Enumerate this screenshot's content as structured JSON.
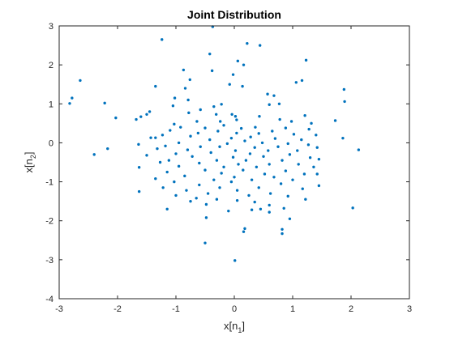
{
  "chart_data": {
    "type": "scatter",
    "title": "Joint Distribution",
    "xlabel": {
      "base": "x[n",
      "sub": "1",
      "close": "]"
    },
    "ylabel": {
      "base": "x[n",
      "sub": "2",
      "close": "]"
    },
    "xlim": [
      -3,
      3
    ],
    "ylim": [
      -4,
      3
    ],
    "xticks": [
      -3,
      -2,
      -1,
      0,
      1,
      2,
      3
    ],
    "yticks": [
      -4,
      -3,
      -2,
      -1,
      0,
      1,
      2,
      3
    ],
    "grid": false,
    "colors": {
      "marker": "#0072BD",
      "axis": "#262626",
      "background": "#ffffff"
    },
    "series": [
      {
        "points": [
          [
            -0.37,
            2.98
          ],
          [
            -1.24,
            2.65
          ],
          [
            0.22,
            2.55
          ],
          [
            0.44,
            2.5
          ],
          [
            -0.42,
            2.28
          ],
          [
            0.06,
            2.1
          ],
          [
            0.16,
            2.0
          ],
          [
            1.23,
            2.12
          ],
          [
            -0.87,
            1.87
          ],
          [
            -0.38,
            1.85
          ],
          [
            -0.02,
            1.75
          ],
          [
            -0.76,
            1.62
          ],
          [
            -2.64,
            1.6
          ],
          [
            1.06,
            1.55
          ],
          [
            1.16,
            1.6
          ],
          [
            -0.08,
            1.5
          ],
          [
            0.14,
            1.45
          ],
          [
            -1.35,
            1.45
          ],
          [
            1.88,
            1.37
          ],
          [
            -0.84,
            1.4
          ],
          [
            0.57,
            1.25
          ],
          [
            -2.78,
            1.15
          ],
          [
            0.68,
            1.21
          ],
          [
            -1.02,
            1.15
          ],
          [
            -0.79,
            1.1
          ],
          [
            1.89,
            1.06
          ],
          [
            -2.82,
            1.01
          ],
          [
            -2.22,
            1.02
          ],
          [
            0.77,
            1.0
          ],
          [
            -0.22,
            0.99
          ],
          [
            0.6,
            0.98
          ],
          [
            -0.35,
            0.93
          ],
          [
            -1.05,
            0.95
          ],
          [
            -0.58,
            0.85
          ],
          [
            -0.78,
            0.77
          ],
          [
            -1.45,
            0.8
          ],
          [
            -1.5,
            0.73
          ],
          [
            -0.31,
            0.73
          ],
          [
            -0.04,
            0.73
          ],
          [
            0.02,
            0.68
          ],
          [
            0.43,
            0.68
          ],
          [
            -1.6,
            0.67
          ],
          [
            1.21,
            0.7
          ],
          [
            -2.03,
            0.64
          ],
          [
            -1.68,
            0.6
          ],
          [
            0.78,
            0.6
          ],
          [
            1.73,
            0.57
          ],
          [
            0.04,
            0.59
          ],
          [
            -0.64,
            0.55
          ],
          [
            -0.24,
            0.55
          ],
          [
            0.98,
            0.55
          ],
          [
            -1.03,
            0.48
          ],
          [
            1.32,
            0.5
          ],
          [
            -0.18,
            0.45
          ],
          [
            -0.92,
            0.4
          ],
          [
            0.36,
            0.4
          ],
          [
            -0.5,
            0.38
          ],
          [
            0.12,
            0.37
          ],
          [
            0.88,
            0.38
          ],
          [
            1.28,
            0.35
          ],
          [
            -1.1,
            0.32
          ],
          [
            -0.28,
            0.3
          ],
          [
            0.65,
            0.3
          ],
          [
            -0.62,
            0.25
          ],
          [
            0.04,
            0.25
          ],
          [
            0.42,
            0.24
          ],
          [
            -1.23,
            0.2
          ],
          [
            1.02,
            0.22
          ],
          [
            1.4,
            0.2
          ],
          [
            -0.75,
            0.17
          ],
          [
            0.28,
            0.15
          ],
          [
            -1.43,
            0.13
          ],
          [
            -1.35,
            0.13
          ],
          [
            -0.05,
            0.12
          ],
          [
            0.7,
            0.11
          ],
          [
            1.86,
            0.12
          ],
          [
            -0.42,
            0.08
          ],
          [
            0.18,
            0.05
          ],
          [
            1.15,
            0.08
          ],
          [
            -1.64,
            -0.04
          ],
          [
            -0.95,
            0.0
          ],
          [
            -0.12,
            -0.02
          ],
          [
            0.48,
            0.0
          ],
          [
            0.92,
            -0.02
          ],
          [
            1.27,
            -0.05
          ],
          [
            -1.18,
            -0.08
          ],
          [
            -0.58,
            -0.1
          ],
          [
            -0.25,
            -0.1
          ],
          [
            0.35,
            -0.12
          ],
          [
            0.75,
            -0.1
          ],
          [
            1.42,
            -0.12
          ],
          [
            2.13,
            -0.18
          ],
          [
            -2.17,
            -0.15
          ],
          [
            -1.32,
            -0.15
          ],
          [
            -0.8,
            -0.18
          ],
          [
            0.02,
            -0.2
          ],
          [
            0.58,
            -0.2
          ],
          [
            1.08,
            -0.2
          ],
          [
            -1.0,
            -0.28
          ],
          [
            -0.4,
            -0.25
          ],
          [
            0.27,
            -0.28
          ],
          [
            0.95,
            -0.3
          ],
          [
            -2.4,
            -0.3
          ],
          [
            -1.5,
            -0.32
          ],
          [
            -0.72,
            -0.35
          ],
          [
            -0.02,
            -0.37
          ],
          [
            0.5,
            -0.35
          ],
          [
            1.3,
            -0.38
          ],
          [
            -1.12,
            -0.45
          ],
          [
            -0.3,
            -0.45
          ],
          [
            0.2,
            -0.45
          ],
          [
            0.82,
            -0.45
          ],
          [
            1.45,
            -0.42
          ],
          [
            -1.27,
            -0.5
          ],
          [
            -0.6,
            -0.52
          ],
          [
            0.07,
            -0.55
          ],
          [
            0.6,
            -0.55
          ],
          [
            1.1,
            -0.55
          ],
          [
            -0.95,
            -0.6
          ],
          [
            -0.18,
            -0.62
          ],
          [
            0.38,
            -0.62
          ],
          [
            1.36,
            -0.62
          ],
          [
            -1.63,
            -0.63
          ],
          [
            -0.5,
            -0.7
          ],
          [
            0.15,
            -0.7
          ],
          [
            0.88,
            -0.72
          ],
          [
            -1.15,
            -0.75
          ],
          [
            -0.22,
            -0.78
          ],
          [
            0.52,
            -0.8
          ],
          [
            1.2,
            -0.8
          ],
          [
            1.42,
            -0.8
          ],
          [
            -0.85,
            -0.85
          ],
          [
            0.0,
            -0.88
          ],
          [
            0.68,
            -0.88
          ],
          [
            -1.35,
            -0.92
          ],
          [
            -0.35,
            -0.95
          ],
          [
            0.3,
            -0.95
          ],
          [
            1.0,
            -0.95
          ],
          [
            -1.03,
            -1.0
          ],
          [
            -0.05,
            -1.0
          ],
          [
            0.8,
            -1.05
          ],
          [
            -0.6,
            -1.08
          ],
          [
            1.45,
            -1.1
          ],
          [
            -1.22,
            -1.15
          ],
          [
            -0.25,
            -1.15
          ],
          [
            0.42,
            -1.15
          ],
          [
            1.17,
            -1.18
          ],
          [
            -0.82,
            -1.22
          ],
          [
            0.05,
            -1.22
          ],
          [
            -1.63,
            -1.25
          ],
          [
            -0.45,
            -1.3
          ],
          [
            0.62,
            -1.3
          ],
          [
            -1.0,
            -1.35
          ],
          [
            0.25,
            -1.35
          ],
          [
            0.92,
            -1.37
          ],
          [
            -0.65,
            -1.42
          ],
          [
            -0.3,
            -1.45
          ],
          [
            1.22,
            -1.45
          ],
          [
            0.05,
            -1.48
          ],
          [
            -0.75,
            -1.5
          ],
          [
            0.35,
            -1.52
          ],
          [
            -0.48,
            -1.58
          ],
          [
            0.6,
            -1.6
          ],
          [
            -1.15,
            -1.7
          ],
          [
            0.45,
            -1.7
          ],
          [
            0.3,
            -1.72
          ],
          [
            0.85,
            -1.68
          ],
          [
            2.03,
            -1.67
          ],
          [
            -0.1,
            -1.75
          ],
          [
            0.6,
            -1.78
          ],
          [
            -0.48,
            -1.92
          ],
          [
            0.95,
            -1.95
          ],
          [
            0.18,
            -2.2
          ],
          [
            0.82,
            -2.22
          ],
          [
            0.16,
            -2.28
          ],
          [
            0.82,
            -2.33
          ],
          [
            -0.5,
            -2.57
          ],
          [
            0.01,
            -3.02
          ]
        ]
      }
    ]
  }
}
